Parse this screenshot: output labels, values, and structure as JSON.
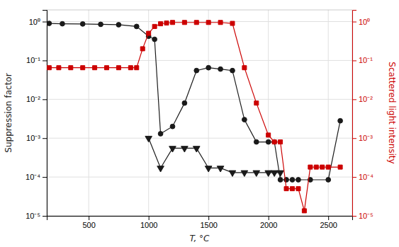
{
  "chart_data": {
    "type": "line",
    "xlabel": "T, °C",
    "ylabel": "Suppression factor",
    "y2label": "Scattered light intensity",
    "log": "y",
    "grid": true,
    "xlim": [
      150,
      2700
    ],
    "xticks": [
      500,
      1000,
      1500,
      2000,
      2500
    ],
    "ylim": [
      1e-05,
      2.0
    ],
    "yticks": [
      {
        "value": 1e-05,
        "label": "10⁻⁵"
      },
      {
        "value": 0.0001,
        "label": "10⁻⁴"
      },
      {
        "value": 0.001,
        "label": "10⁻³"
      },
      {
        "value": 0.01,
        "label": "10⁻²"
      },
      {
        "value": 0.1,
        "label": "10⁻¹"
      },
      {
        "value": 1,
        "label": "10⁰"
      }
    ],
    "y2lim": [
      1e-05,
      2.0
    ],
    "y2ticks": [
      {
        "value": 1e-05,
        "label": "10⁻⁵"
      },
      {
        "value": 0.0001,
        "label": "10⁻⁴"
      },
      {
        "value": 0.001,
        "label": "10⁻³"
      },
      {
        "value": 0.01,
        "label": "10⁻²"
      },
      {
        "value": 0.1,
        "label": "10⁻¹"
      },
      {
        "value": 1,
        "label": "10⁰"
      }
    ],
    "series": [
      {
        "color": "#1a1a1a",
        "marker": "circle",
        "line_style": "solid",
        "x": [
          170,
          280,
          450,
          600,
          750,
          900,
          1000,
          1050,
          1100,
          1200,
          1300,
          1400,
          1500,
          1600,
          1700,
          1800,
          1900,
          2000,
          2050,
          2100,
          2150,
          2200,
          2250,
          2350,
          2500,
          2600
        ],
        "values": [
          0.9,
          0.88,
          0.87,
          0.85,
          0.83,
          0.75,
          0.42,
          0.35,
          0.0013,
          0.002,
          0.008,
          0.055,
          0.065,
          0.06,
          0.055,
          0.003,
          0.0008,
          0.0008,
          0.0008,
          8.5e-05,
          8.5e-05,
          8.5e-05,
          8.5e-05,
          8.5e-05,
          8.5e-05,
          0.0028
        ]
      },
      {
        "color": "#1a1a1a",
        "marker": "triangle-down",
        "line_style": "solid",
        "x": [
          1000,
          1100,
          1200,
          1300,
          1400,
          1500,
          1600,
          1700,
          1800,
          1900,
          2000,
          2050,
          2100
        ],
        "values": [
          0.001,
          0.00017,
          0.00055,
          0.00055,
          0.00055,
          0.00017,
          0.00017,
          0.00013,
          0.00013,
          0.00013,
          0.00013,
          0.00013,
          0.00013
        ]
      },
      {
        "color": "#cc0000",
        "marker": "square",
        "line_style": "solid",
        "axis": "y2",
        "x": [
          170,
          250,
          350,
          450,
          550,
          650,
          750,
          850,
          900,
          950,
          1000,
          1050,
          1100,
          1150,
          1200,
          1300,
          1400,
          1500,
          1600,
          1700,
          1800,
          1900,
          2000,
          2050,
          2100,
          2150,
          2200,
          2250,
          2300,
          2350,
          2400,
          2450,
          2500,
          2600
        ],
        "values": [
          0.065,
          0.065,
          0.065,
          0.065,
          0.065,
          0.065,
          0.065,
          0.065,
          0.065,
          0.2,
          0.5,
          0.75,
          0.88,
          0.92,
          0.95,
          0.95,
          0.95,
          0.95,
          0.95,
          0.9,
          0.065,
          0.008,
          0.0012,
          0.0008,
          0.0008,
          5e-05,
          5e-05,
          5e-05,
          1.35e-05,
          0.00018,
          0.00018,
          0.00018,
          0.00018,
          0.00018
        ]
      }
    ]
  }
}
